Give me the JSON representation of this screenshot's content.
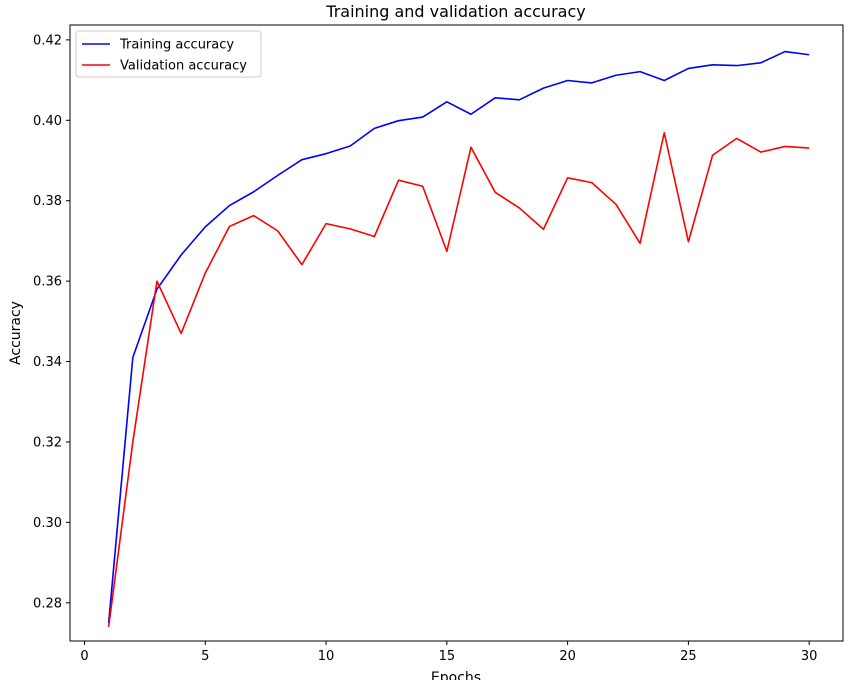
{
  "chart_data": {
    "type": "line",
    "title": "Training and validation accuracy",
    "xlabel": "Epochs",
    "ylabel": "Accuracy",
    "xlim": [
      -0.6,
      31.4
    ],
    "ylim": [
      0.2705,
      0.4237
    ],
    "xticks": [
      0,
      5,
      10,
      15,
      20,
      25,
      30
    ],
    "xtick_labels": [
      "0",
      "5",
      "10",
      "15",
      "20",
      "25",
      "30"
    ],
    "yticks": [
      0.28,
      0.3,
      0.32,
      0.34,
      0.36,
      0.38,
      0.4,
      0.42
    ],
    "ytick_labels": [
      "0.28",
      "0.30",
      "0.32",
      "0.34",
      "0.36",
      "0.38",
      "0.40",
      "0.42"
    ],
    "grid": false,
    "legend_position": "top-left",
    "x": [
      1,
      2,
      3,
      4,
      5,
      6,
      7,
      8,
      9,
      10,
      11,
      12,
      13,
      14,
      15,
      16,
      17,
      18,
      19,
      20,
      21,
      22,
      23,
      24,
      25,
      26,
      27,
      28,
      29,
      30
    ],
    "series": [
      {
        "name": "Training accuracy",
        "color": "#0000ff",
        "values": [
          0.275,
          0.341,
          0.358,
          0.3665,
          0.3735,
          0.3788,
          0.3822,
          0.3863,
          0.3902,
          0.3917,
          0.3936,
          0.398,
          0.3999,
          0.4008,
          0.4046,
          0.4015,
          0.4056,
          0.4051,
          0.408,
          0.4099,
          0.4093,
          0.4112,
          0.4121,
          0.4099,
          0.4129,
          0.4138,
          0.4136,
          0.4143,
          0.4171,
          0.4163
        ]
      },
      {
        "name": "Validation accuracy",
        "color": "#ff0000",
        "values": [
          0.274,
          0.32,
          0.36,
          0.347,
          0.362,
          0.3736,
          0.3763,
          0.3725,
          0.3641,
          0.3743,
          0.373,
          0.3711,
          0.3851,
          0.3836,
          0.3674,
          0.3933,
          0.3821,
          0.3782,
          0.3729,
          0.3857,
          0.3845,
          0.3791,
          0.3694,
          0.3969,
          0.3698,
          0.3913,
          0.3955,
          0.3921,
          0.3935,
          0.3931
        ]
      }
    ]
  }
}
